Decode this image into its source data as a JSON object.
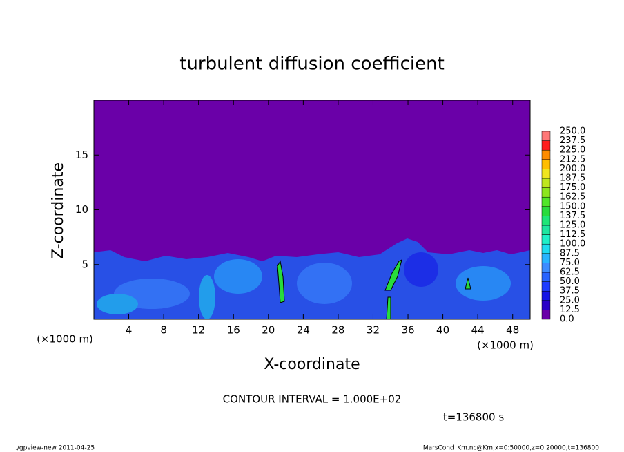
{
  "chart_data": {
    "type": "contour",
    "title": "turbulent diffusion coefficient",
    "x_label": "X-coordinate",
    "y_label": "Z-coordinate",
    "x_unit": "(×1000 m)",
    "y_unit": "(×1000 m)",
    "xlim": [
      0,
      50
    ],
    "xticks": [
      4,
      8,
      12,
      16,
      20,
      24,
      28,
      32,
      36,
      40,
      44,
      48
    ],
    "ylim": [
      0,
      20
    ],
    "yticks": [
      5,
      10,
      15
    ],
    "colorbar": {
      "levels": [
        {
          "value": 0,
          "label": "0.0"
        },
        12.5,
        {
          "value": 25,
          "label": "25.0"
        },
        37.5,
        {
          "value": 50,
          "label": "50.0"
        },
        62.5,
        {
          "value": 75,
          "label": "75.0"
        },
        87.5,
        {
          "value": 100,
          "label": "100.0"
        },
        112.5,
        {
          "value": 125,
          "label": "125.0"
        },
        137.5,
        {
          "value": 150,
          "label": "150.0"
        },
        162.5,
        {
          "value": 175,
          "label": "175.0"
        },
        187.5,
        {
          "value": 200,
          "label": "200.0"
        },
        212.5,
        {
          "value": 225,
          "label": "225.0"
        },
        237.5,
        {
          "value": 250,
          "label": "250.0"
        }
      ],
      "colors": [
        "#6a00a8",
        "#2800c8",
        "#1414e6",
        "#1e3cff",
        "#2864ff",
        "#3c8cff",
        "#28b4ff",
        "#1edcf0",
        "#1ef0c8",
        "#1ee6a0",
        "#1ee678",
        "#28dc3c",
        "#50e628",
        "#8ce61e",
        "#bee61e",
        "#f0e61e",
        "#ffbe00",
        "#ff8c00",
        "#ff1e1e",
        "#ff7878"
      ]
    },
    "contour_interval": "CONTOUR INTERVAL = 1.000E+02",
    "time_label": "t=136800 s",
    "footer_left": "./gpview-new   2011-04-25",
    "footer_right": "MarsCond_Km.nc@Km,x=0:50000,z=0:20000,t=136800"
  }
}
